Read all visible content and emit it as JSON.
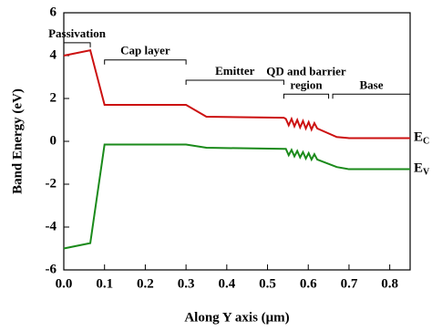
{
  "chart_data": {
    "type": "line",
    "xlabel": "Along Y axis (μm)",
    "ylabel": "Band Energy (eV)",
    "xlim": [
      0,
      0.85
    ],
    "ylim": [
      -6,
      6
    ],
    "xticks": [
      {
        "value": 0,
        "label": "0.0"
      },
      {
        "value": 0.1,
        "label": "0.1"
      },
      {
        "value": 0.2,
        "label": "0.2"
      },
      {
        "value": 0.3,
        "label": "0.3"
      },
      {
        "value": 0.4,
        "label": "0.4"
      },
      {
        "value": 0.5,
        "label": "0.5"
      },
      {
        "value": 0.6,
        "label": "0.6"
      },
      {
        "value": 0.7,
        "label": "0.7"
      },
      {
        "value": 0.8,
        "label": "0.8"
      }
    ],
    "yticks": [
      -6,
      -4,
      -2,
      0,
      2,
      4,
      6
    ],
    "series": [
      {
        "name": "E",
        "subscript": "C",
        "color": "#cc1010",
        "x": [
          0,
          0.065,
          0.1,
          0.3,
          0.35,
          0.54,
          0.545,
          0.552,
          0.559,
          0.566,
          0.573,
          0.58,
          0.587,
          0.594,
          0.601,
          0.608,
          0.615,
          0.622,
          0.67,
          0.7,
          0.85
        ],
        "values": [
          4.0,
          4.25,
          1.7,
          1.7,
          1.15,
          1.1,
          1.05,
          0.75,
          1.05,
          0.7,
          1.0,
          0.65,
          0.95,
          0.6,
          0.9,
          0.55,
          0.85,
          0.6,
          0.2,
          0.15,
          0.15
        ]
      },
      {
        "name": "E",
        "subscript": "V",
        "color": "#1a8a1a",
        "x": [
          0,
          0.065,
          0.1,
          0.3,
          0.35,
          0.54,
          0.545,
          0.552,
          0.559,
          0.566,
          0.573,
          0.58,
          0.587,
          0.594,
          0.601,
          0.608,
          0.615,
          0.622,
          0.67,
          0.7,
          0.85
        ],
        "values": [
          -5.0,
          -4.75,
          -0.15,
          -0.15,
          -0.3,
          -0.35,
          -0.35,
          -0.65,
          -0.4,
          -0.7,
          -0.45,
          -0.75,
          -0.5,
          -0.8,
          -0.55,
          -0.85,
          -0.6,
          -0.85,
          -1.2,
          -1.3,
          -1.3
        ]
      }
    ],
    "annotations": [
      {
        "lines": [
          "Passivation"
        ],
        "x": [
          0,
          0.065
        ],
        "y": 4.6
      },
      {
        "lines": [
          "Cap layer"
        ],
        "x": [
          0.1,
          0.3
        ],
        "y": 3.8
      },
      {
        "lines": [
          "Emitter"
        ],
        "x": [
          0.3,
          0.54
        ],
        "y": 2.85
      },
      {
        "lines": [
          "QD and barrier",
          "region"
        ],
        "x": [
          0.54,
          0.65
        ],
        "y": 2.2
      },
      {
        "lines": [
          "Base"
        ],
        "x": [
          0.66,
          0.85
        ],
        "y": 2.2
      }
    ]
  }
}
